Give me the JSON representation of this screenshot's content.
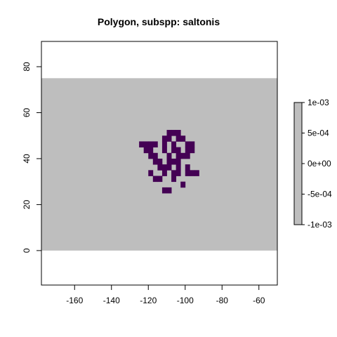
{
  "chart_data": {
    "type": "raster-map",
    "title": "Polygon, subspp: saltonis",
    "xlabel": "",
    "ylabel": "",
    "xlim": [
      -178,
      -50
    ],
    "ylim": [
      -15,
      91
    ],
    "x_ticks": [
      -160,
      -140,
      -120,
      -100,
      -80,
      -60
    ],
    "y_ticks": [
      0,
      20,
      40,
      60,
      80
    ],
    "raster_extent": {
      "xmin": -178,
      "xmax": -50,
      "ymin": 0,
      "ymax": 75
    },
    "background_value_color": "#bebebe",
    "cell_size_deg": 2.5,
    "polygon_color": "#440154",
    "polygon_cells": [
      [
        -108.75,
        51.25
      ],
      [
        -106.25,
        51.25
      ],
      [
        -103.75,
        51.25
      ],
      [
        -111.25,
        48.75
      ],
      [
        -108.75,
        48.75
      ],
      [
        -103.75,
        48.75
      ],
      [
        -101.25,
        48.75
      ],
      [
        -123.75,
        46.25
      ],
      [
        -121.25,
        46.25
      ],
      [
        -118.75,
        46.25
      ],
      [
        -116.25,
        46.25
      ],
      [
        -111.25,
        46.25
      ],
      [
        -106.25,
        46.25
      ],
      [
        -98.75,
        46.25
      ],
      [
        -96.25,
        46.25
      ],
      [
        -121.25,
        43.75
      ],
      [
        -118.75,
        43.75
      ],
      [
        -111.25,
        43.75
      ],
      [
        -106.25,
        43.75
      ],
      [
        -103.75,
        43.75
      ],
      [
        -98.75,
        43.75
      ],
      [
        -96.25,
        43.75
      ],
      [
        -118.75,
        41.25
      ],
      [
        -116.25,
        41.25
      ],
      [
        -108.75,
        41.25
      ],
      [
        -103.75,
        41.25
      ],
      [
        -101.25,
        41.25
      ],
      [
        -98.75,
        41.25
      ],
      [
        -116.25,
        38.75
      ],
      [
        -113.75,
        38.75
      ],
      [
        -108.75,
        38.75
      ],
      [
        -106.25,
        38.75
      ],
      [
        -103.75,
        38.75
      ],
      [
        -113.75,
        36.25
      ],
      [
        -111.25,
        36.25
      ],
      [
        -108.75,
        36.25
      ],
      [
        -103.75,
        36.25
      ],
      [
        -98.75,
        36.25
      ],
      [
        -118.75,
        33.75
      ],
      [
        -111.25,
        33.75
      ],
      [
        -106.25,
        33.75
      ],
      [
        -103.75,
        33.75
      ],
      [
        -98.75,
        33.75
      ],
      [
        -96.25,
        33.75
      ],
      [
        -93.75,
        33.75
      ],
      [
        -116.25,
        31.25
      ],
      [
        -113.75,
        31.25
      ],
      [
        -106.25,
        31.25
      ],
      [
        -101.25,
        28.75
      ],
      [
        -111.25,
        26.25
      ],
      [
        -108.75,
        26.25
      ]
    ],
    "legend": {
      "placement": "right",
      "labels": [
        "1e-03",
        "5e-04",
        "0e+00",
        "-5e-04",
        "-1e-03"
      ],
      "values": [
        0.001,
        0.0005,
        0,
        -0.0005,
        -0.001
      ],
      "color": "#bebebe"
    }
  }
}
